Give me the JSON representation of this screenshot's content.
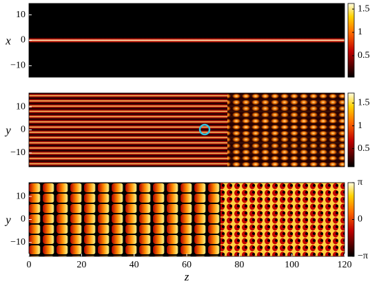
{
  "chart_data": [
    {
      "type": "heatmap",
      "ylabel": "x",
      "ylim": [
        -14.5,
        14.5
      ],
      "yticks": [
        10,
        0,
        {
          "value": -10,
          "label": "−10"
        }
      ],
      "clim": [
        0.04,
        1.62
      ],
      "cticks": [
        1.5,
        1,
        0.5
      ]
    },
    {
      "type": "heatmap",
      "ylabel": "y",
      "ylim": [
        -16,
        16
      ],
      "yticks": [
        10,
        0,
        {
          "value": -10,
          "label": "−10"
        }
      ],
      "clim": [
        0.1,
        1.72
      ],
      "cticks": [
        1.5,
        1,
        0.5
      ]
    },
    {
      "type": "heatmap",
      "ylabel": "y",
      "ylim": [
        -16,
        16
      ],
      "yticks": [
        10,
        0,
        {
          "value": -10,
          "label": "−10"
        }
      ],
      "clim": [
        -3.1416,
        3.1416
      ],
      "cticks": [
        {
          "value": 3.1416,
          "label": "π"
        },
        0,
        {
          "value": -3.1416,
          "label": "−π"
        }
      ],
      "xlabel": "z",
      "xlim": [
        0,
        120
      ],
      "xticks": [
        0,
        20,
        40,
        60,
        80,
        100,
        120
      ]
    }
  ]
}
